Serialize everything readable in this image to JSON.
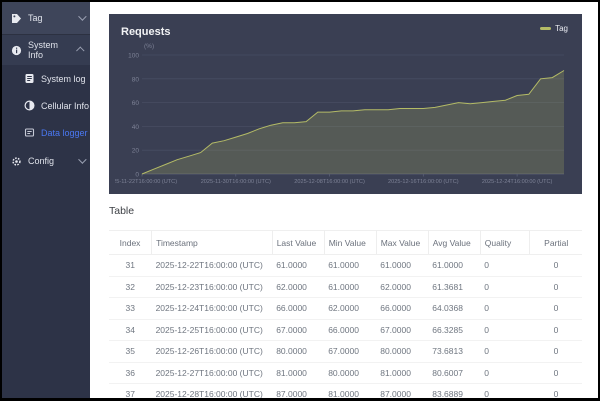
{
  "sidebar": {
    "items": [
      {
        "label": "Tag",
        "icon": "tag-icon",
        "expanded": false
      },
      {
        "label": "System Info",
        "icon": "info-icon",
        "expanded": true
      },
      {
        "label": "System log",
        "icon": "log-icon"
      },
      {
        "label": "Cellular Info",
        "icon": "cellular-icon"
      },
      {
        "label": "Data logger",
        "icon": "datalogger-icon",
        "active": true
      },
      {
        "label": "Config",
        "icon": "gear-icon",
        "expanded": false
      }
    ],
    "active_color": "#4a78f2"
  },
  "chart": {
    "title": "Requests",
    "legend_label": "Tag",
    "legend_color": "#b4bb66"
  },
  "chart_data": {
    "type": "area",
    "title": "Requests",
    "unit_label": "(%)",
    "ylim": [
      0,
      100
    ],
    "yticks": [
      0,
      20,
      40,
      60,
      80,
      100
    ],
    "grid": true,
    "legend_position": "top-right",
    "x_dates": [
      "2025-11-22",
      "2025-11-23",
      "2025-11-24",
      "2025-11-25",
      "2025-11-26",
      "2025-11-27",
      "2025-11-28",
      "2025-11-29",
      "2025-11-30",
      "2025-12-01",
      "2025-12-02",
      "2025-12-03",
      "2025-12-04",
      "2025-12-05",
      "2025-12-06",
      "2025-12-07",
      "2025-12-08",
      "2025-12-09",
      "2025-12-10",
      "2025-12-11",
      "2025-12-12",
      "2025-12-13",
      "2025-12-14",
      "2025-12-15",
      "2025-12-16",
      "2025-12-17",
      "2025-12-18",
      "2025-12-19",
      "2025-12-20",
      "2025-12-21",
      "2025-12-22",
      "2025-12-23",
      "2025-12-24",
      "2025-12-25",
      "2025-12-26",
      "2025-12-27",
      "2025-12-28"
    ],
    "x_tick_indices": [
      0,
      8,
      16,
      24,
      32
    ],
    "x_tick_labels": [
      "2025-11-22T16:00:00 (UTC)",
      "2025-11-30T16:00:00 (UTC)",
      "2025-12-08T16:00:00 (UTC)",
      "2025-12-16T16:00:00 (UTC)",
      "2025-12-24T16:00:00 (UTC)"
    ],
    "series": [
      {
        "name": "Tag",
        "color": "#b4bb66",
        "fill_opacity": 0.22,
        "values": [
          0,
          4,
          8,
          12,
          15,
          18,
          26,
          28,
          31,
          34,
          38,
          41,
          43,
          43,
          44,
          52,
          52,
          53,
          53,
          54,
          54,
          54,
          55,
          55,
          55,
          56,
          58,
          60,
          59,
          60,
          61,
          62,
          66,
          67,
          80,
          81,
          87
        ]
      }
    ]
  },
  "table": {
    "title": "Table",
    "headers": [
      "Index",
      "Timestamp",
      "Last Value",
      "Min Value",
      "Max Value",
      "Avg Value",
      "Quality",
      "Partial"
    ],
    "rows": [
      [
        "31",
        "2025-12-22T16:00:00 (UTC)",
        "61.0000",
        "61.0000",
        "61.0000",
        "61.0000",
        "0",
        "0"
      ],
      [
        "32",
        "2025-12-23T16:00:00 (UTC)",
        "62.0000",
        "61.0000",
        "62.0000",
        "61.3681",
        "0",
        "0"
      ],
      [
        "33",
        "2025-12-24T16:00:00 (UTC)",
        "66.0000",
        "62.0000",
        "66.0000",
        "64.0368",
        "0",
        "0"
      ],
      [
        "34",
        "2025-12-25T16:00:00 (UTC)",
        "67.0000",
        "66.0000",
        "67.0000",
        "66.3285",
        "0",
        "0"
      ],
      [
        "35",
        "2025-12-26T16:00:00 (UTC)",
        "80.0000",
        "67.0000",
        "80.0000",
        "73.6813",
        "0",
        "0"
      ],
      [
        "36",
        "2025-12-27T16:00:00 (UTC)",
        "81.0000",
        "80.0000",
        "81.0000",
        "80.6007",
        "0",
        "0"
      ],
      [
        "37",
        "2025-12-28T16:00:00 (UTC)",
        "87.0000",
        "81.0000",
        "87.0000",
        "83.6889",
        "0",
        "0"
      ]
    ]
  }
}
